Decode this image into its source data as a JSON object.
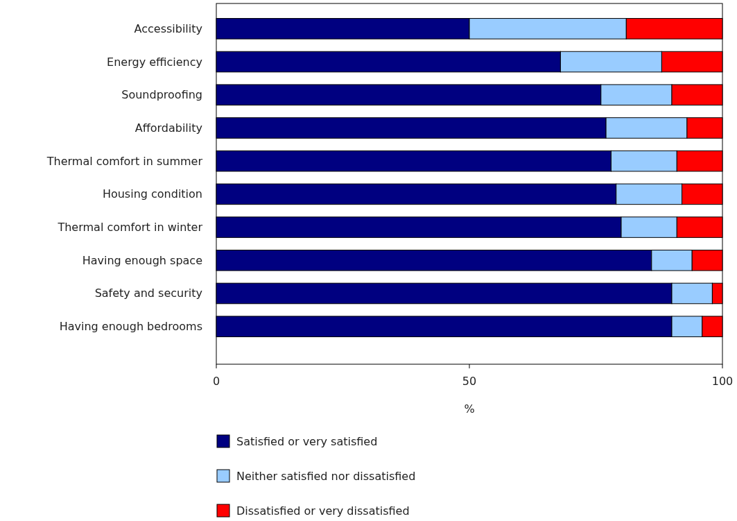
{
  "chart_data": {
    "type": "bar",
    "orientation": "horizontal",
    "stacked": true,
    "xlabel": "%",
    "categories": [
      "Accessibility",
      "Energy efficiency",
      "Soundproofing",
      "Affordability",
      "Thermal comfort in summer",
      "Housing condition",
      "Thermal comfort in winter",
      "Having enough space",
      "Safety and security",
      "Having enough bedrooms"
    ],
    "series": [
      {
        "name": "Satisfied or very satisfied",
        "color": "#000080",
        "values": [
          50,
          68,
          76,
          77,
          78,
          79,
          80,
          86,
          90,
          90
        ]
      },
      {
        "name": "Neither satisfied nor dissatisfied",
        "color": "#99ccff",
        "values": [
          31,
          20,
          14,
          16,
          13,
          13,
          11,
          8,
          8,
          6
        ]
      },
      {
        "name": "Dissatisfied or very dissatisfied",
        "color": "#ff0000",
        "values": [
          19,
          12,
          10,
          7,
          9,
          8,
          9,
          6,
          2,
          4
        ]
      }
    ],
    "xlim": [
      0,
      100
    ],
    "xticks": [
      0,
      50,
      100
    ],
    "grid": false,
    "legend": "bottom"
  }
}
